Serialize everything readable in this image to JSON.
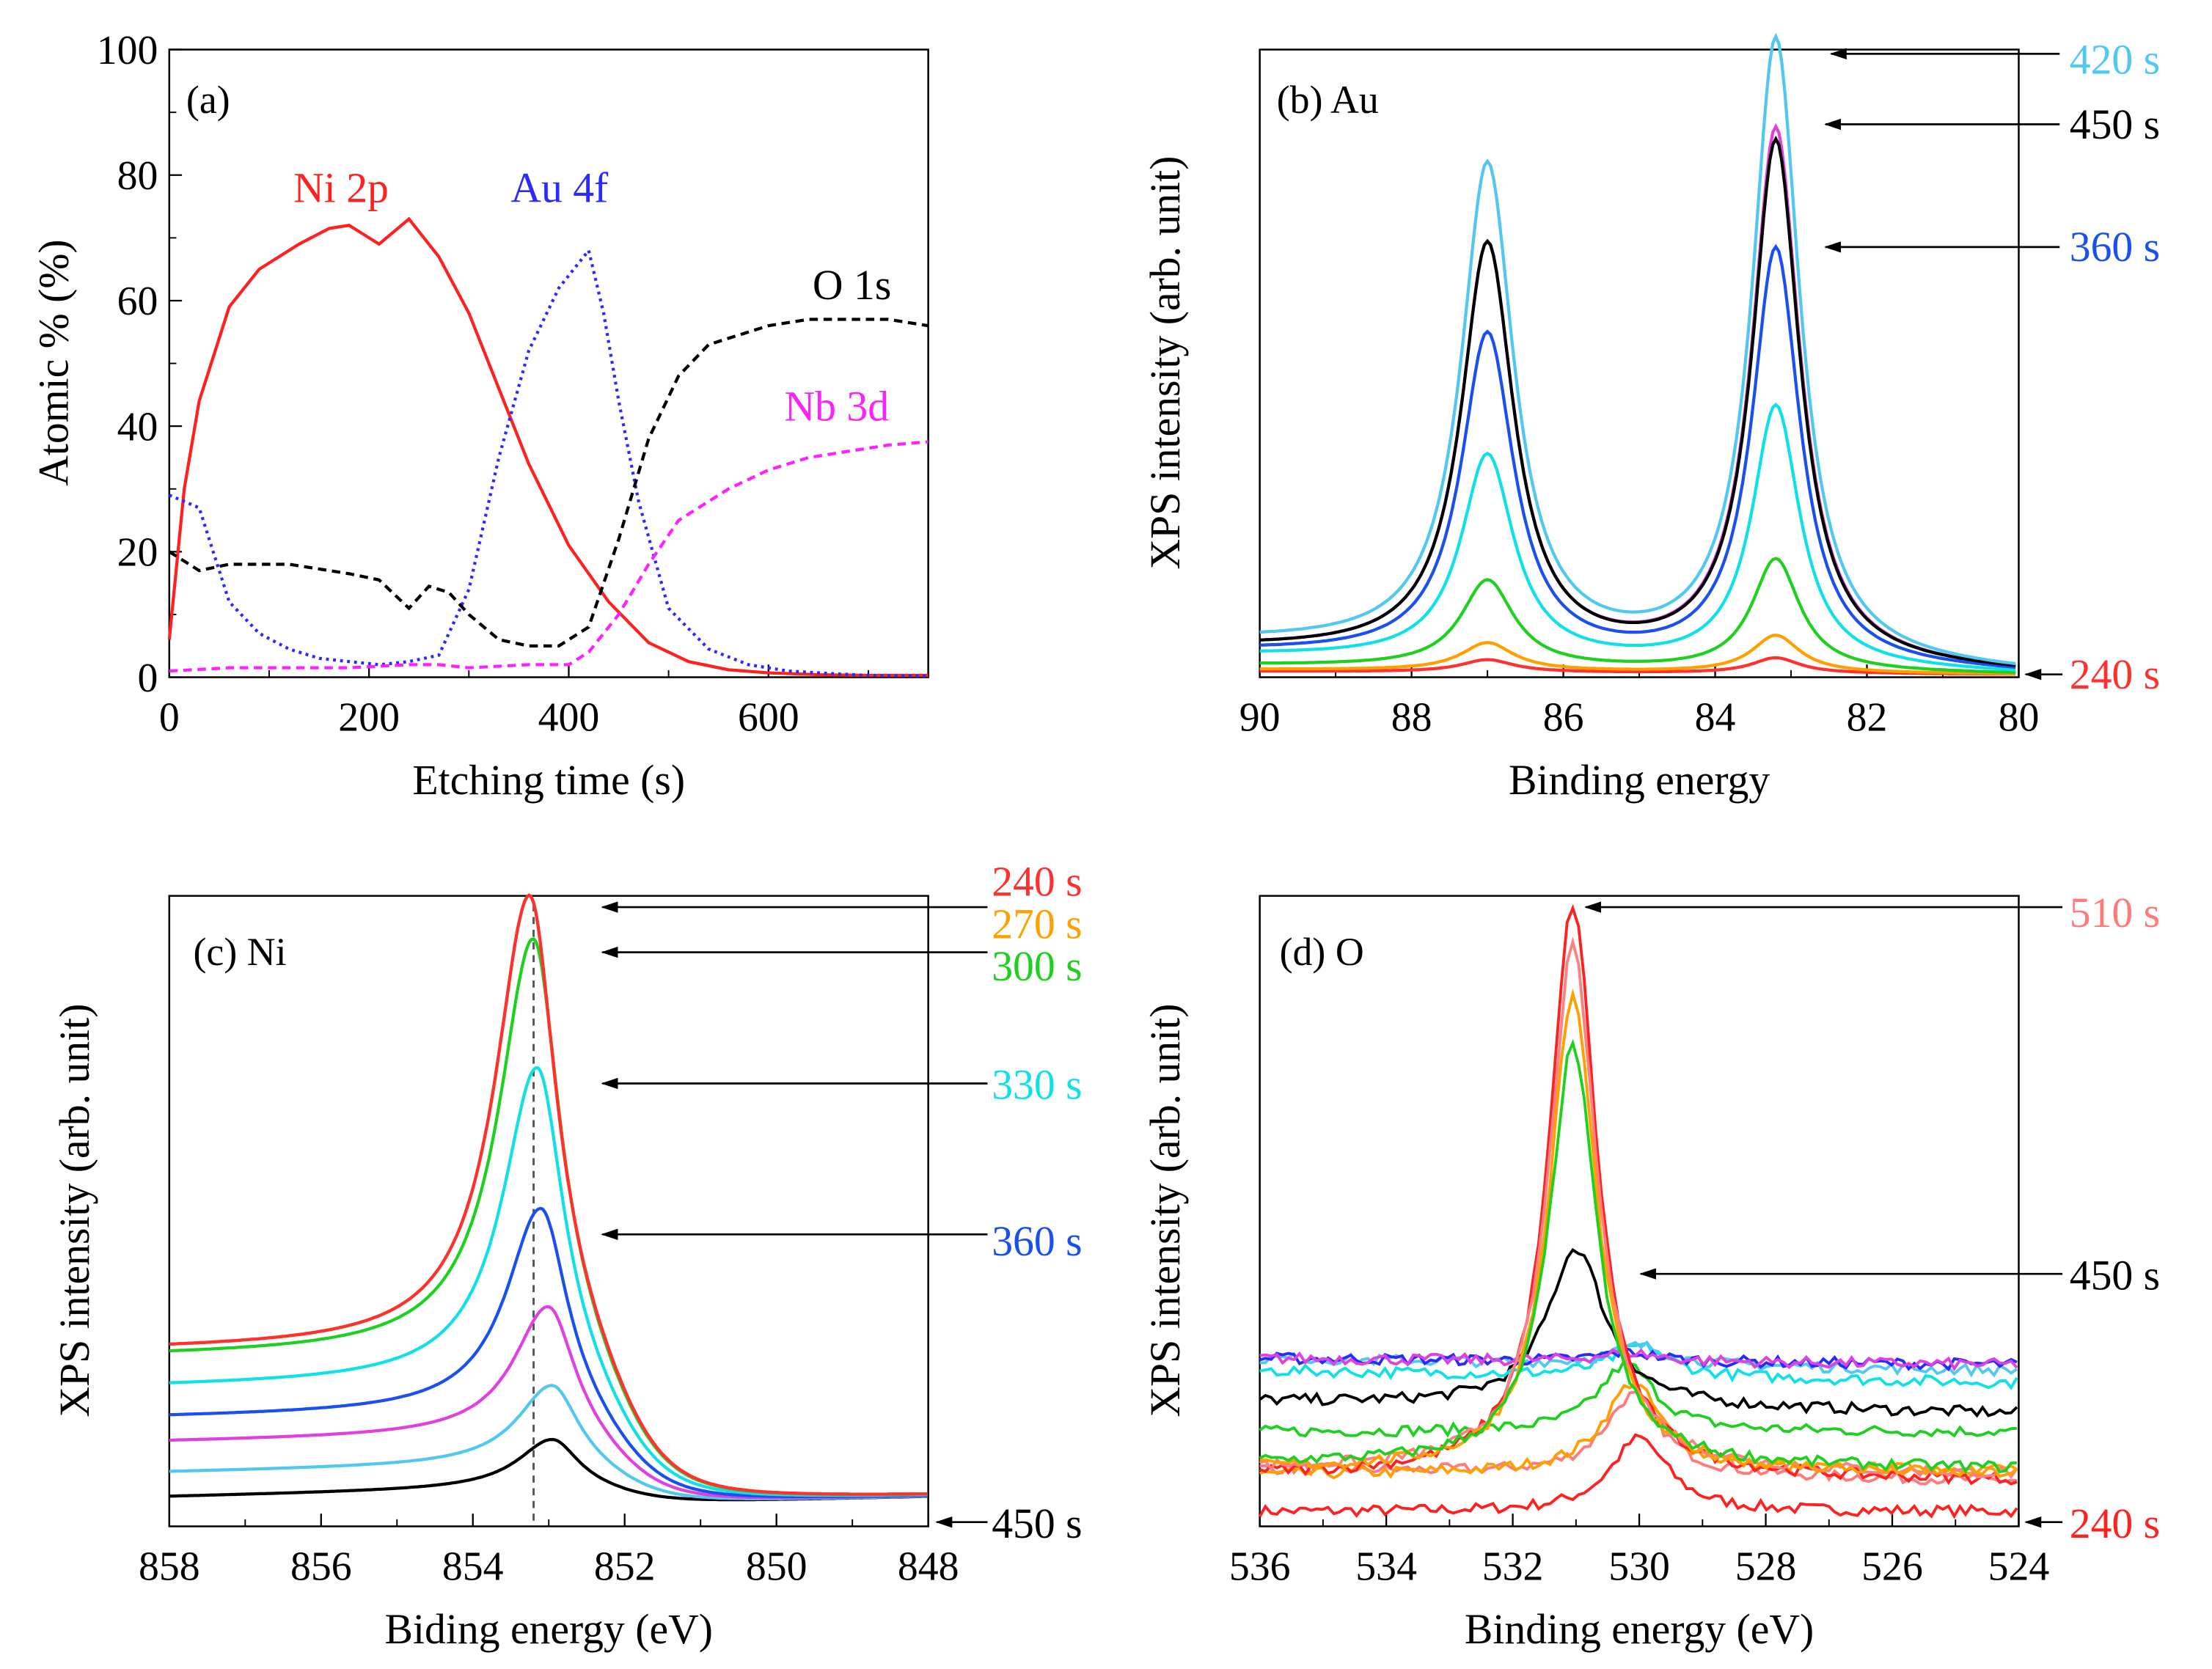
{
  "chart_data": [
    {
      "type": "line",
      "panel_label": "(a)",
      "xlabel": "Etching time (s)",
      "ylabel": "Atomic % (%)",
      "xlim": [
        0,
        760
      ],
      "ylim": [
        0,
        100
      ],
      "xticks": [
        "0",
        "200",
        "400",
        "600"
      ],
      "yticks": [
        "0",
        "20",
        "40",
        "60",
        "80",
        "100"
      ],
      "series": [
        {
          "name": "Ni 2p",
          "color": "#ff2020",
          "style": "solid",
          "x": [
            0,
            15,
            30,
            60,
            90,
            130,
            160,
            180,
            210,
            240,
            270,
            300,
            330,
            360,
            400,
            440,
            480,
            520,
            560,
            600,
            650,
            700,
            760
          ],
          "y": [
            6,
            30,
            44,
            59,
            65,
            69,
            71.5,
            72,
            69,
            73,
            67,
            58,
            46,
            34,
            21,
            12,
            5.5,
            2.5,
            1.2,
            0.7,
            0.4,
            0.3,
            0.3
          ]
        },
        {
          "name": "Au 4f",
          "color": "#2a2aff",
          "style": "dotted",
          "x": [
            0,
            30,
            60,
            90,
            120,
            150,
            180,
            210,
            240,
            270,
            300,
            330,
            360,
            390,
            420,
            435,
            450,
            470,
            500,
            540,
            580,
            620,
            660,
            700,
            760
          ],
          "y": [
            29,
            27,
            12,
            7,
            4.5,
            3,
            2.5,
            2,
            2.5,
            3.5,
            14,
            35,
            52,
            62,
            68,
            58,
            44,
            28,
            11,
            4.5,
            2,
            1,
            0.6,
            0.3,
            0.2
          ]
        },
        {
          "name": "O 1s",
          "color": "#000000",
          "style": "dashed",
          "x": [
            0,
            30,
            60,
            120,
            180,
            210,
            240,
            260,
            280,
            300,
            330,
            360,
            390,
            420,
            450,
            480,
            510,
            540,
            560,
            600,
            640,
            680,
            720,
            760
          ],
          "y": [
            20,
            17,
            18,
            18,
            16.5,
            15.5,
            11,
            14.5,
            13.5,
            10,
            6,
            5,
            5,
            8,
            22,
            38,
            48,
            53,
            54,
            56,
            57,
            57,
            57,
            56
          ]
        },
        {
          "name": "Nb 3d",
          "color": "#ff20ff",
          "style": "dashed",
          "x": [
            0,
            60,
            120,
            180,
            240,
            270,
            300,
            360,
            400,
            420,
            450,
            480,
            510,
            560,
            600,
            640,
            680,
            720,
            760
          ],
          "y": [
            1,
            1.5,
            1.5,
            1.5,
            2,
            2,
            1.5,
            2,
            2,
            4,
            10,
            18,
            25,
            30,
            33,
            35,
            36,
            37,
            37.5
          ]
        }
      ]
    },
    {
      "type": "line",
      "panel_label": "(b) Au",
      "xlabel": "Binding energy",
      "ylabel": "XPS intensity (arb. unit)",
      "xlim": [
        90,
        80
      ],
      "x_reversed": true,
      "xticks": [
        "90",
        "88",
        "86",
        "84",
        "82",
        "80"
      ],
      "peak_positions_eV": [
        87.0,
        83.2
      ],
      "series": [
        {
          "name": "240 s",
          "color": "#ff3030",
          "peak_heights": [
            0.02,
            0.025
          ],
          "baseline": 0.005
        },
        {
          "name": "orange",
          "color": "#ffa000",
          "peak_heights": [
            0.045,
            0.06
          ],
          "baseline": 0.008
        },
        {
          "name": "green",
          "color": "#20d020",
          "peak_heights": [
            0.14,
            0.18
          ],
          "baseline": 0.015
        },
        {
          "name": "cyan",
          "color": "#10e0e8",
          "peak_heights": [
            0.33,
            0.42
          ],
          "baseline": 0.03
        },
        {
          "name": "360 s",
          "color": "#1a4ff0",
          "peak_heights": [
            0.52,
            0.67
          ],
          "baseline": 0.035
        },
        {
          "name": "magenta",
          "color": "#e040e0",
          "peak_heights": [
            0.66,
            0.86
          ],
          "baseline": 0.04
        },
        {
          "name": "450 s",
          "color": "#000000",
          "peak_heights": [
            0.66,
            0.84
          ],
          "baseline": 0.04
        },
        {
          "name": "420 s",
          "color": "#50c8f0",
          "peak_heights": [
            0.78,
            1.0
          ],
          "baseline": 0.05
        }
      ],
      "annotations": [
        {
          "text": "420 s",
          "color": "#50c8f0"
        },
        {
          "text": "450 s",
          "color": "#000000"
        },
        {
          "text": "360 s",
          "color": "#1a4ff0"
        },
        {
          "text": "240 s",
          "color": "#ff3030"
        }
      ]
    },
    {
      "type": "line",
      "panel_label": "(c) Ni",
      "xlabel": "Biding energy (eV)",
      "ylabel": "XPS intensity (arb. unit)",
      "xlim": [
        858,
        848
      ],
      "x_reversed": true,
      "xticks": [
        "858",
        "856",
        "854",
        "852",
        "850",
        "848"
      ],
      "reference_line_eV": 853.2,
      "series": [
        {
          "name": "240 s",
          "color": "#ff3030",
          "peak_eV": 853.25,
          "peak": 1.0,
          "baseline": 0.27
        },
        {
          "name": "270 s",
          "color": "#ffa000",
          "peak_eV": 853.25,
          "peak": 1.0,
          "baseline": 0.27
        },
        {
          "name": "300 s",
          "color": "#20d020",
          "peak_eV": 853.2,
          "peak": 0.93,
          "baseline": 0.26
        },
        {
          "name": "330 s",
          "color": "#10e0e8",
          "peak_eV": 853.15,
          "peak": 0.72,
          "baseline": 0.21
        },
        {
          "name": "360 s",
          "color": "#1a4ff0",
          "peak_eV": 853.1,
          "peak": 0.49,
          "baseline": 0.16
        },
        {
          "name": "magenta",
          "color": "#e040e0",
          "peak_eV": 853.0,
          "peak": 0.33,
          "baseline": 0.12
        },
        {
          "name": "lightblue",
          "color": "#50c8f0",
          "peak_eV": 852.95,
          "peak": 0.2,
          "baseline": 0.07
        },
        {
          "name": "450 s",
          "color": "#000000",
          "peak_eV": 852.95,
          "peak": 0.11,
          "baseline": 0.03
        }
      ],
      "annotations": [
        {
          "text": "240 s",
          "color": "#ff3030"
        },
        {
          "text": "270 s",
          "color": "#ffa000"
        },
        {
          "text": "300 s",
          "color": "#20d020"
        },
        {
          "text": "330 s",
          "color": "#10e0e8"
        },
        {
          "text": "360 s",
          "color": "#1a4ff0"
        },
        {
          "text": "450 s",
          "color": "#000000"
        }
      ]
    },
    {
      "type": "line",
      "panel_label": "(d) O",
      "xlabel": "Binding energy (eV)",
      "ylabel": "XPS intensity (arb. unit)",
      "xlim": [
        536,
        524
      ],
      "x_reversed": true,
      "xticks": [
        "536",
        "534",
        "532",
        "530",
        "528",
        "526",
        "524"
      ],
      "series": [
        {
          "name": "240 s",
          "color": "#ff2020",
          "peak_eV": 530.0,
          "peak": 0.13,
          "base_left": 0.01,
          "base_right": 0.01
        },
        {
          "name": "salmon",
          "color": "#ff7a7a",
          "peak_eV": 530.1,
          "peak": 0.2,
          "base_left": 0.08,
          "base_right": 0.06
        },
        {
          "name": "orange",
          "color": "#ffa000",
          "peak_eV": 530.1,
          "peak": 0.22,
          "base_left": 0.07,
          "base_right": 0.08
        },
        {
          "name": "green",
          "color": "#20d020",
          "peak_eV": 530.2,
          "peak": 0.25,
          "base_left": 0.14,
          "base_right": 0.14
        },
        {
          "name": "450 s",
          "color": "#000000",
          "peak_eV": 531.0,
          "peak": 0.44,
          "base_left": 0.19,
          "base_right": 0.17
        },
        {
          "name": "cyan",
          "color": "#10e0e8",
          "peak_eV": 530.0,
          "peak": 0.28,
          "base_left": 0.24,
          "base_right": 0.22
        },
        {
          "name": "lightblue",
          "color": "#50c8f0",
          "peak_eV": 530.0,
          "peak": 0.28,
          "base_left": 0.26,
          "base_right": 0.24
        },
        {
          "name": "blue",
          "color": "#2a2aff",
          "peak_eV": 530.2,
          "peak": 0.27,
          "base_left": 0.26,
          "base_right": 0.25
        },
        {
          "name": "magenta",
          "color": "#e040e0",
          "peak_eV": 530.2,
          "peak": 0.27,
          "base_left": 0.26,
          "base_right": 0.25
        },
        {
          "name": "510 s",
          "color": "#ff2020",
          "peak_eV": 531.05,
          "peak": 1.0,
          "base_left": 0.07,
          "base_right": 0.06
        },
        {
          "name": "pink",
          "color": "#ff8080",
          "peak_eV": 531.05,
          "peak": 0.93,
          "base_left": 0.08,
          "base_right": 0.07
        },
        {
          "name": "orange2",
          "color": "#ffa000",
          "peak_eV": 531.05,
          "peak": 0.85,
          "base_left": 0.08,
          "base_right": 0.07
        },
        {
          "name": "green2",
          "color": "#20d020",
          "peak_eV": 531.05,
          "peak": 0.77,
          "base_left": 0.09,
          "base_right": 0.08
        }
      ],
      "annotations": [
        {
          "text": "510 s",
          "color": "#ff7a7a"
        },
        {
          "text": "450 s",
          "color": "#000000"
        },
        {
          "text": "240 s",
          "color": "#ff2020"
        }
      ]
    }
  ]
}
